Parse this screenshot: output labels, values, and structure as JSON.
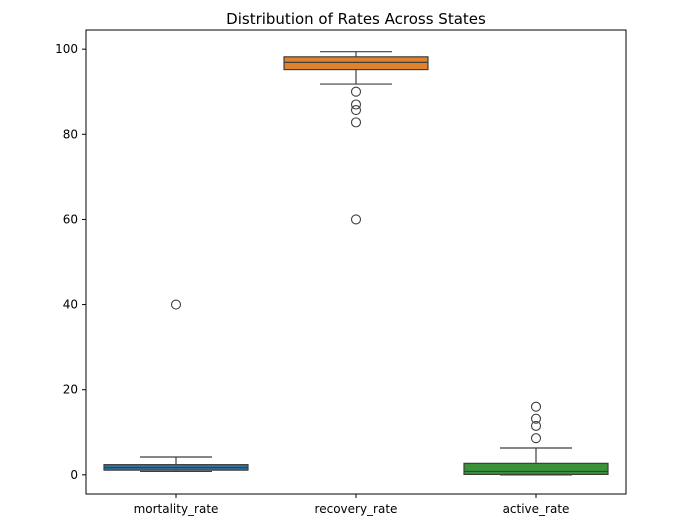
{
  "chart_data": {
    "type": "boxplot",
    "title": "Distribution of Rates Across States",
    "xlabel": "",
    "ylabel": "",
    "ylim": [
      -4.5,
      104.5
    ],
    "yticks": [
      0,
      20,
      40,
      60,
      80,
      100
    ],
    "grid": false,
    "categories": [
      "mortality_rate",
      "recovery_rate",
      "active_rate"
    ],
    "colors": [
      "#3274a1",
      "#e1812c",
      "#3a923a"
    ],
    "boxes": [
      {
        "name": "mortality_rate",
        "whisker_low": 0.8,
        "q1": 1.1,
        "median": 1.7,
        "q3": 2.4,
        "whisker_high": 4.2,
        "outliers": [
          40
        ]
      },
      {
        "name": "recovery_rate",
        "whisker_low": 91.8,
        "q1": 95.2,
        "median": 96.9,
        "q3": 98.2,
        "whisker_high": 99.4,
        "outliers": [
          90,
          87,
          85.7,
          82.8,
          60
        ]
      },
      {
        "name": "active_rate",
        "whisker_low": 0,
        "q1": 0.1,
        "median": 0.8,
        "q3": 2.7,
        "whisker_high": 6.3,
        "outliers": [
          8.6,
          11.5,
          13.2,
          16
        ]
      }
    ]
  }
}
